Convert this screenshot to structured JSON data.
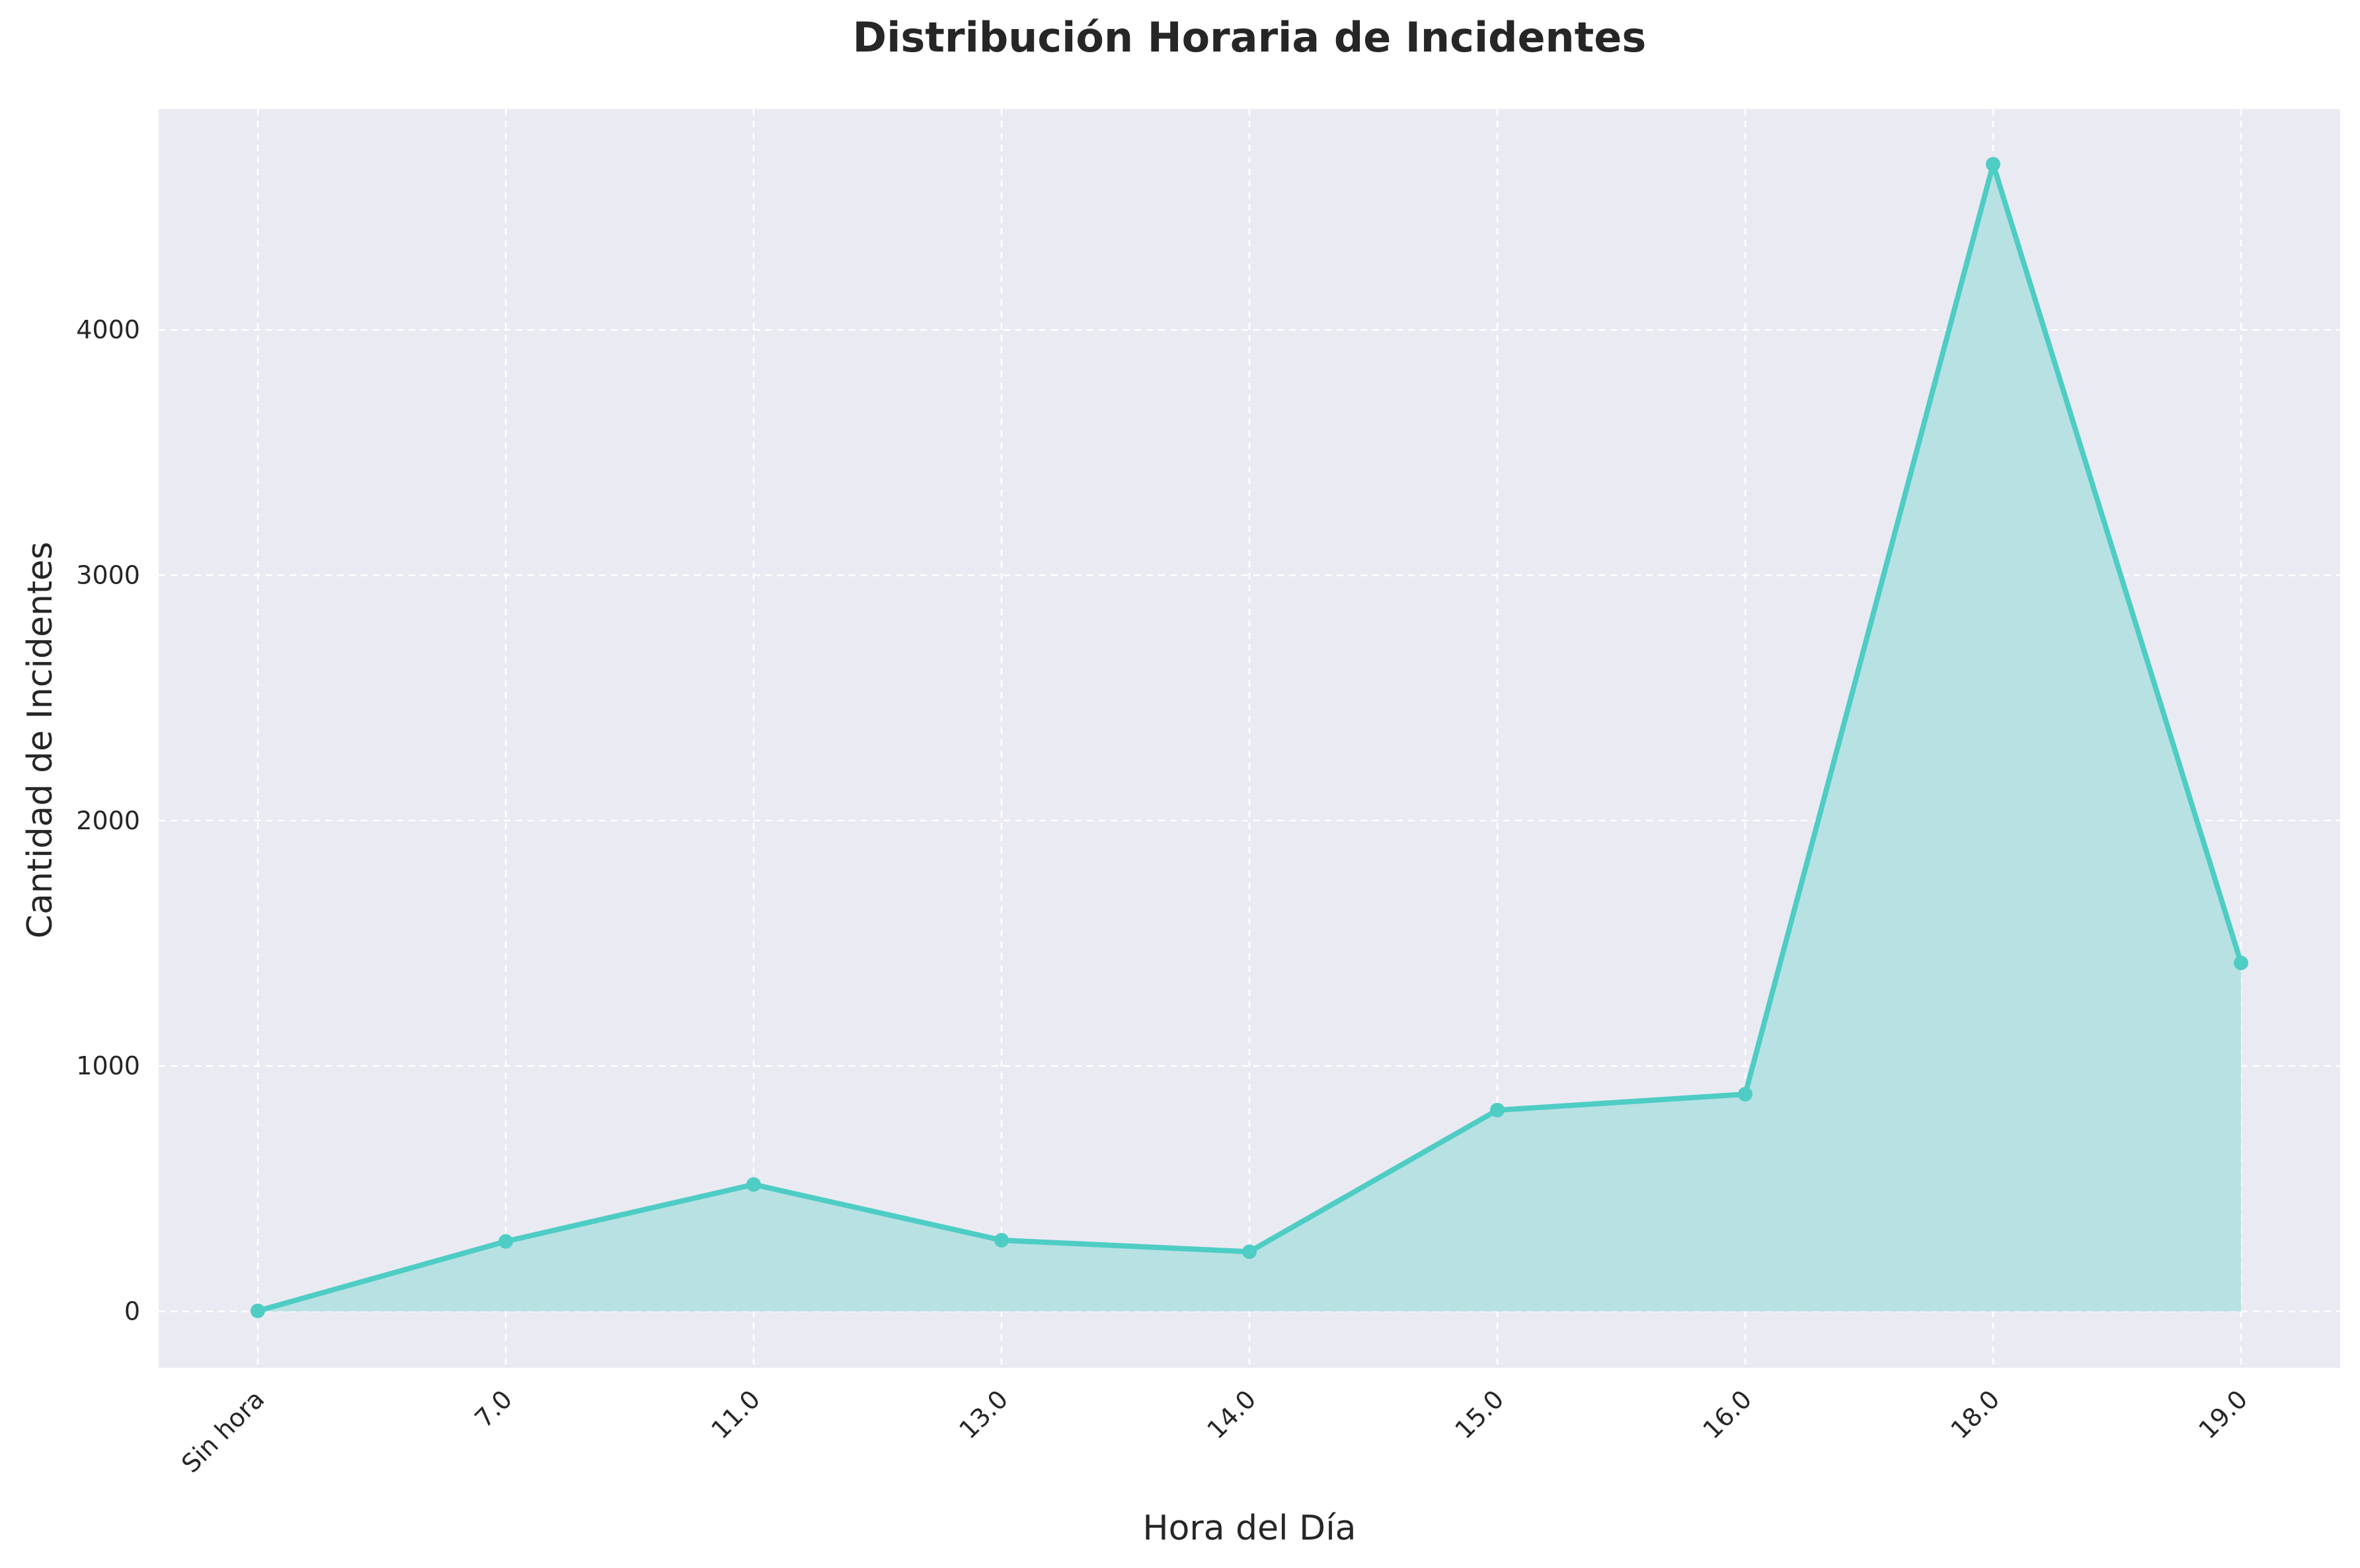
{
  "chart_data": {
    "type": "area",
    "title": "Distribución Horaria de Incidentes",
    "xlabel": "Hora del Día",
    "ylabel": "Cantidad de Incidentes",
    "categories": [
      "Sin hora",
      "7.0",
      "11.0",
      "13.0",
      "14.0",
      "15.0",
      "16.0",
      "18.0",
      "19.0"
    ],
    "values": [
      2,
      285,
      517,
      290,
      243,
      820,
      885,
      4675,
      1420
    ],
    "ylim": [
      -230,
      4900
    ],
    "yticks": [
      0,
      1000,
      2000,
      3000,
      4000
    ],
    "grid": true,
    "legend": "none",
    "colors": {
      "line": "#4ecdc4",
      "fill": "#b8e1e3",
      "plot_background": "#eaeaf2",
      "grid": "#ffffff"
    }
  }
}
